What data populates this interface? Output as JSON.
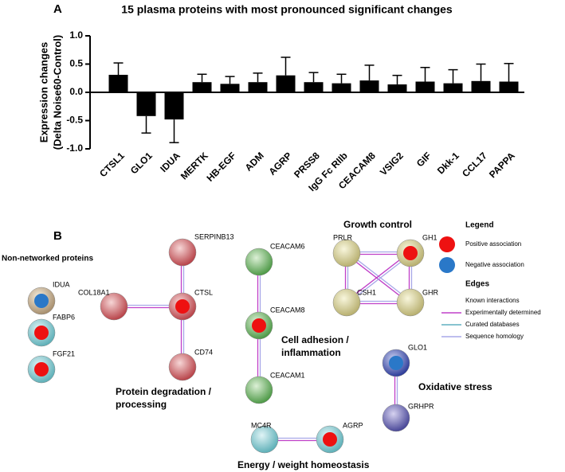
{
  "chart_data": {
    "type": "bar",
    "panel_label": "A",
    "title": "15 plasma proteins with most pronounced significant changes",
    "ylabel": [
      "Expression changes",
      "(Delta Noise60-Control)"
    ],
    "categories": [
      "CTSL1",
      "GLO1",
      "IDUA",
      "MERTK",
      "HB-EGF",
      "ADM",
      "AGRP",
      "PRSS8",
      "IgG Fc RIIb",
      "CEACAM8",
      "VSIG2",
      "GIF",
      "Dkk-1",
      "CCL17",
      "PAPPA"
    ],
    "values": [
      0.31,
      -0.42,
      -0.48,
      0.18,
      0.15,
      0.18,
      0.3,
      0.18,
      0.16,
      0.21,
      0.14,
      0.19,
      0.16,
      0.2,
      0.19
    ],
    "errors": [
      0.21,
      0.3,
      0.41,
      0.14,
      0.13,
      0.16,
      0.32,
      0.17,
      0.16,
      0.27,
      0.16,
      0.25,
      0.24,
      0.3,
      0.32
    ],
    "color": "#000000",
    "ylim": [
      -1.0,
      1.0
    ],
    "yticks": [
      {
        "value": -1.0,
        "label": "-1.0"
      },
      {
        "value": -0.5,
        "label": "-0.5"
      },
      {
        "value": 0.0,
        "label": "0.0"
      },
      {
        "value": 0.5,
        "label": "0.5"
      },
      {
        "value": 1.0,
        "label": "1.0"
      }
    ],
    "grid": false
  },
  "network": {
    "panel_label": "B",
    "nodes": [
      "IDUA",
      "FABP6",
      "FGF21",
      "COL18A1",
      "SERPINB13",
      "CTSL",
      "CD74",
      "CEACAM6",
      "CEACAM8",
      "CEACAM1",
      "PRLR",
      "GH1",
      "CSH1",
      "GHR",
      "GLO1",
      "GRHPR",
      "MC4R",
      "AGRP"
    ],
    "groups": [
      [
        "Non-networked proteins"
      ],
      [
        "Protein degradation /",
        "processing"
      ],
      [
        "Cell adhesion /",
        "inflammation"
      ],
      [
        "Growth control"
      ],
      [
        "Oxidative stress"
      ],
      [
        "Energy / weight homeostasis"
      ]
    ],
    "legend": {
      "title": "Legend",
      "items": [
        "Positive association",
        "Negative association"
      ],
      "edges_title": "Edges",
      "edges_subtitle": "Known interactions",
      "edge_types": [
        "Experimentally determined",
        "Curated databases",
        "Sequence homology"
      ]
    }
  }
}
